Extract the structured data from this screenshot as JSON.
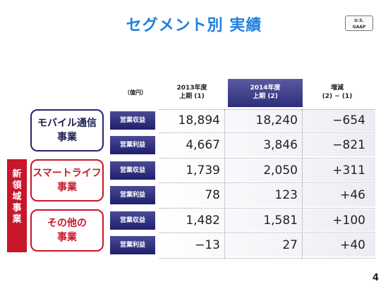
{
  "title": "セグメント別 実績",
  "badge": {
    "line1": "U.S.",
    "line2": "GAAP"
  },
  "columns": {
    "unit": "（億円）",
    "y2013": {
      "line1": "2013年度",
      "line2": "上期 (1)"
    },
    "y2014": {
      "line1": "2014年度",
      "line2": "上期 (2)"
    },
    "diff": {
      "line1": "増減",
      "line2": "(2) − (1)"
    }
  },
  "new_domain_label": "新領域事業",
  "segments": [
    {
      "name_line1": "モバイル通信",
      "name_line2": "事業",
      "rows": [
        {
          "metric": "営業収益",
          "y2013": "18,894",
          "y2014": "18,240",
          "diff": "−654"
        },
        {
          "metric": "営業利益",
          "y2013": "4,667",
          "y2014": "3,846",
          "diff": "−821"
        }
      ]
    },
    {
      "name_line1": "スマートライフ",
      "name_line2": "事業",
      "rows": [
        {
          "metric": "営業収益",
          "y2013": "1,739",
          "y2014": "2,050",
          "diff": "+311"
        },
        {
          "metric": "営業利益",
          "y2013": "78",
          "y2014": "123",
          "diff": "+46"
        }
      ]
    },
    {
      "name_line1": "その他の",
      "name_line2": "事業",
      "rows": [
        {
          "metric": "営業収益",
          "y2013": "1,482",
          "y2014": "1,581",
          "diff": "+100"
        },
        {
          "metric": "営業利益",
          "y2013": "−13",
          "y2014": "27",
          "diff": "+40"
        }
      ]
    }
  ],
  "page_number": "4",
  "colors": {
    "title": "#1f7fe0",
    "navy": "#25256e",
    "red": "#c8162a"
  }
}
